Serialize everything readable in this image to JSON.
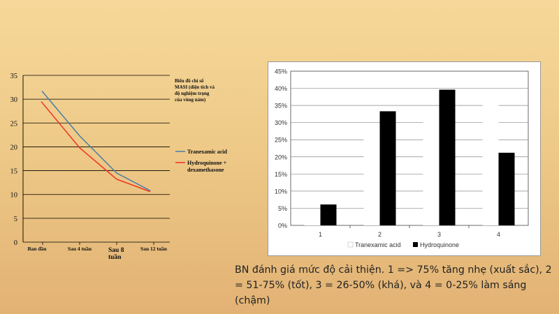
{
  "chart_data": [
    {
      "type": "line",
      "title": "Biểu đồ chỉ số MASI (diện tích và độ nghiệm trọng của vùng nám)",
      "title_lines": [
        "Biểu đồ chỉ số",
        "MASI (diện tích và",
        "độ nghiệm trọng",
        "của vùng nám)"
      ],
      "categories": [
        "Ban đầu",
        "Sau 4 tuần",
        "Sau 8 tuần",
        "Sau 12 tuần"
      ],
      "category_lines": [
        [
          "Ban đầu"
        ],
        [
          "Sau 4 tuần"
        ],
        [
          "Sau 8",
          "tuần"
        ],
        [
          "Sau 12 tuần"
        ]
      ],
      "ylim": [
        0,
        35
      ],
      "yticks": [
        0,
        5,
        10,
        15,
        20,
        25,
        30,
        35
      ],
      "grid": true,
      "legend_position": "right",
      "series": [
        {
          "name": "Tranexamic acid",
          "name_lines": [
            "Tranexamic acid"
          ],
          "color": "#4a7ea6",
          "values": [
            31.7,
            22.3,
            14.5,
            10.8
          ]
        },
        {
          "name": "Hydroquinone + dexamethasone",
          "name_lines": [
            "Hydroquinone +",
            "dexamethasone"
          ],
          "color": "#ee3322",
          "values": [
            29.5,
            19.8,
            13.2,
            10.6
          ]
        }
      ]
    },
    {
      "type": "bar",
      "categories": [
        "1",
        "2",
        "3",
        "4"
      ],
      "ylim": [
        0,
        0.45
      ],
      "yticks": [
        "0%",
        "5%",
        "10%",
        "15%",
        "20%",
        "25%",
        "30%",
        "35%",
        "40%",
        "45%"
      ],
      "grid": true,
      "legend_position": "bottom",
      "series": [
        {
          "name": "Tranexamic acid",
          "color": "#ffffff",
          "values": [
            0.03,
            0.273,
            0.303,
            0.396
          ]
        },
        {
          "name": "Hydroquinone",
          "color": "#000000",
          "values": [
            0.061,
            0.333,
            0.396,
            0.212
          ]
        }
      ]
    }
  ],
  "caption": "BN đánh giá mức độ cải thiện. 1 => 75% tăng nhẹ (xuất sắc), 2 = 51-75% (tốt), 3 = 26-50% (khá), và 4 = 0-25% làm sáng (chậm)"
}
